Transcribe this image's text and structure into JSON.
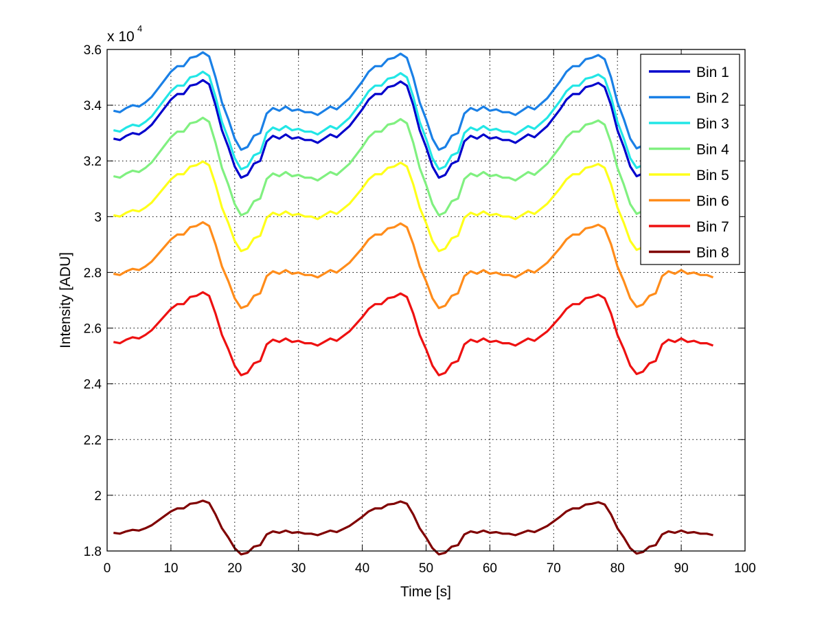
{
  "chart_data": {
    "type": "line",
    "title": "",
    "xlabel": "Time [s]",
    "ylabel": "Intensity [ADU]",
    "exponent_label": "x 10",
    "exponent_power": "4",
    "xlim": [
      0,
      100
    ],
    "ylim": [
      1.8,
      3.6
    ],
    "grid": true,
    "legend_position": "top-right",
    "x_ticks": [
      "0",
      "10",
      "20",
      "30",
      "40",
      "50",
      "60",
      "70",
      "80",
      "90",
      "100"
    ],
    "y_ticks": [
      "1.8",
      "2",
      "2.2",
      "2.4",
      "2.6",
      "2.8",
      "3",
      "3.2",
      "3.4",
      "3.6"
    ],
    "x_start": 1,
    "x_step": 1,
    "base_shape": [
      0,
      -0.005,
      0.01,
      0.02,
      0.015,
      0.03,
      0.05,
      0.08,
      0.11,
      0.14,
      0.16,
      0.16,
      0.19,
      0.195,
      0.21,
      0.195,
      0.12,
      0.03,
      -0.03,
      -0.1,
      -0.14,
      -0.13,
      -0.09,
      -0.08,
      -0.01,
      0.01,
      0.0,
      0.015,
      0.0,
      0.005,
      -0.005,
      -0.005,
      -0.015,
      0.0,
      0.015,
      0.005,
      0.025,
      0.045,
      0.075,
      0.105,
      0.14,
      0.16,
      0.16,
      0.185,
      0.19,
      0.205,
      0.19,
      0.12,
      0.03,
      -0.03,
      -0.1,
      -0.14,
      -0.13,
      -0.09,
      -0.08,
      -0.01,
      0.01,
      0.0,
      0.015,
      0.0,
      0.005,
      -0.005,
      -0.005,
      -0.015,
      0.0,
      0.015,
      0.005,
      0.025,
      0.045,
      0.075,
      0.105,
      0.14,
      0.16,
      0.16,
      0.185,
      0.19,
      0.2,
      0.185,
      0.12,
      0.03,
      -0.03,
      -0.1,
      -0.135,
      -0.125,
      -0.09,
      -0.08,
      -0.01,
      0.01,
      0.0,
      0.015,
      0.0,
      0.005,
      -0.005,
      -0.005,
      -0.015
    ],
    "series": [
      {
        "name": "Bin 1",
        "color": "#0000cc",
        "offset": 3.28,
        "scale": 1.0
      },
      {
        "name": "Bin 2",
        "color": "#1a80e6",
        "offset": 3.38,
        "scale": 1.0
      },
      {
        "name": "Bin 3",
        "color": "#22e6e6",
        "offset": 3.31,
        "scale": 1.0
      },
      {
        "name": "Bin 4",
        "color": "#80f080",
        "offset": 3.145,
        "scale": 1.0
      },
      {
        "name": "Bin 5",
        "color": "#ffff1a",
        "offset": 3.005,
        "scale": 0.92
      },
      {
        "name": "Bin 6",
        "color": "#ff8c1a",
        "offset": 2.795,
        "scale": 0.88
      },
      {
        "name": "Bin 7",
        "color": "#ee1111",
        "offset": 2.55,
        "scale": 0.85
      },
      {
        "name": "Bin 8",
        "color": "#800000",
        "offset": 1.865,
        "scale": 0.55
      }
    ]
  }
}
